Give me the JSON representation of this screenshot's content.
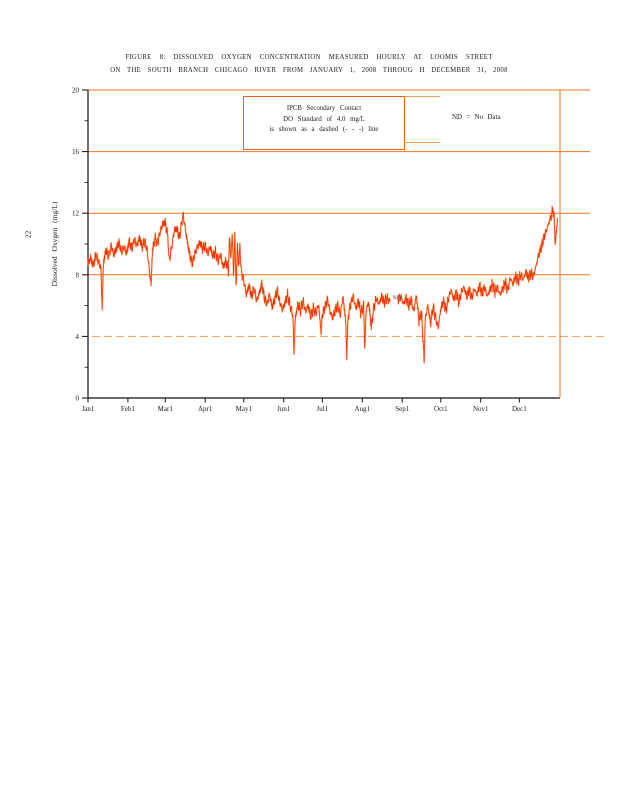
{
  "page": {
    "number": "22"
  },
  "figure_title": {
    "line1": "FIGURE 8: DISSOLVED OXYGEN CONCENTRATION MEASURED HOURLY AT LOOMIS STREET",
    "line2": "ON THE SOUTH BRANCH CHICAGO RIVER FROM JANUARY 1, 2008 THROUG H DECEMBER 31, 2008"
  },
  "legend": {
    "line1": "IPCB Secondary Contact",
    "line2": "DO Standard of 4.0 mg/L",
    "line3": "is shown as a dashed (- - -) line"
  },
  "nd_note": "ND = No Data",
  "colors": {
    "grid": "#ee7420",
    "dashed_standard": "#f8a55f",
    "data": "#f53000",
    "data_glow": "#ffab66",
    "axis": "#111111",
    "legend_border": "#e8601c",
    "nd_annotation": "#4a4a4a"
  },
  "chart_data": {
    "type": "line",
    "title": "FIGURE 8: Dissolved oxygen concentration measured hourly at Loomis Street on the South Branch Chicago River from January 1, 2008 through December 31, 2008",
    "xlabel": "",
    "ylabel": "Dissolved Oxygen (mg/L)",
    "ylim": [
      0,
      20
    ],
    "y_major_ticks": [
      0,
      4,
      8,
      12,
      16,
      20
    ],
    "y_minor_ticks": [
      2,
      6,
      10,
      14,
      18
    ],
    "x_tick_days": [
      1,
      32,
      61,
      92,
      122,
      153,
      183,
      214,
      245,
      275,
      306,
      336
    ],
    "x_tick_labels": [
      "Jan1",
      "Feb1",
      "Mar1",
      "Apr1",
      "May1",
      "Jun1",
      "Jul1",
      "Aug1",
      "Sep1",
      "Oct1",
      "Nov1",
      "Dec1"
    ],
    "x_range_days": [
      1,
      366
    ],
    "grid": "horizontal solid lines at 8, 12, 16, 20 mg/L",
    "legend_position": "top inside plot",
    "standard_line": {
      "value": 4.0,
      "style": "dashed",
      "meaning": "IPCB Secondary Contact DO Standard of 4.0 mg/L"
    },
    "no_data": {
      "label": "ND",
      "gap_days": [
        235.5,
        241.5
      ],
      "label_day": 237.5,
      "label_value": 6.4
    },
    "noise_amplitude": 0.42,
    "series": [
      {
        "name": "Hourly dissolved oxygen (mg/L)",
        "points": [
          [
            1,
            8.7
          ],
          [
            3,
            9.1
          ],
          [
            5,
            8.6
          ],
          [
            7,
            9.3
          ],
          [
            9,
            8.9
          ],
          [
            11,
            8.4
          ],
          [
            12,
            5.9
          ],
          [
            13,
            8.8
          ],
          [
            15,
            9.6
          ],
          [
            17,
            9.2
          ],
          [
            19,
            9.9
          ],
          [
            21,
            9.3
          ],
          [
            23,
            9.7
          ],
          [
            25,
            10.1
          ],
          [
            27,
            9.5
          ],
          [
            29,
            9.8
          ],
          [
            31,
            9.4
          ],
          [
            33,
            10.2
          ],
          [
            35,
            9.7
          ],
          [
            37,
            10.3
          ],
          [
            39,
            9.9
          ],
          [
            41,
            10.4
          ],
          [
            43,
            9.8
          ],
          [
            45,
            10.2
          ],
          [
            47,
            9.6
          ],
          [
            49,
            8.0
          ],
          [
            50,
            7.4
          ],
          [
            51,
            9.5
          ],
          [
            53,
            10.4
          ],
          [
            55,
            10.0
          ],
          [
            57,
            10.8
          ],
          [
            59,
            11.3
          ],
          [
            61,
            11.4
          ],
          [
            63,
            10.5
          ],
          [
            64,
            8.9
          ],
          [
            66,
            9.8
          ],
          [
            68,
            10.9
          ],
          [
            70,
            11.0
          ],
          [
            72,
            10.4
          ],
          [
            74,
            11.5
          ],
          [
            75,
            11.9
          ],
          [
            76,
            11.3
          ],
          [
            78,
            10.2
          ],
          [
            80,
            9.3
          ],
          [
            82,
            8.7
          ],
          [
            84,
            9.4
          ],
          [
            86,
            9.8
          ],
          [
            88,
            10.1
          ],
          [
            90,
            9.7
          ],
          [
            92,
            9.9
          ],
          [
            94,
            9.4
          ],
          [
            96,
            9.8
          ],
          [
            98,
            9.2
          ],
          [
            100,
            9.5
          ],
          [
            102,
            8.9
          ],
          [
            104,
            9.3
          ],
          [
            106,
            8.5
          ],
          [
            108,
            8.9
          ],
          [
            110,
            8.3
          ],
          [
            111,
            10.4
          ],
          [
            112,
            9.0
          ],
          [
            113,
            10.8
          ],
          [
            114,
            7.9
          ],
          [
            115,
            10.6
          ],
          [
            116,
            7.2
          ],
          [
            117,
            9.8
          ],
          [
            118,
            8.6
          ],
          [
            119,
            9.9
          ],
          [
            120,
            8.2
          ],
          [
            122,
            7.6
          ],
          [
            124,
            6.7
          ],
          [
            126,
            7.3
          ],
          [
            128,
            6.6
          ],
          [
            130,
            7.1
          ],
          [
            132,
            6.3
          ],
          [
            134,
            6.8
          ],
          [
            136,
            7.4
          ],
          [
            138,
            6.5
          ],
          [
            140,
            6.1
          ],
          [
            142,
            6.7
          ],
          [
            144,
            5.9
          ],
          [
            146,
            6.4
          ],
          [
            148,
            7.0
          ],
          [
            150,
            6.2
          ],
          [
            152,
            5.7
          ],
          [
            154,
            6.2
          ],
          [
            156,
            6.7
          ],
          [
            158,
            6.0
          ],
          [
            160,
            5.4
          ],
          [
            161,
            3.0
          ],
          [
            162,
            5.2
          ],
          [
            164,
            6.1
          ],
          [
            166,
            5.7
          ],
          [
            168,
            6.3
          ],
          [
            170,
            5.6
          ],
          [
            172,
            6.0
          ],
          [
            174,
            5.3
          ],
          [
            176,
            5.8
          ],
          [
            178,
            5.5
          ],
          [
            180,
            6.1
          ],
          [
            182,
            4.3
          ],
          [
            183,
            5.4
          ],
          [
            185,
            5.9
          ],
          [
            187,
            6.4
          ],
          [
            189,
            5.6
          ],
          [
            191,
            5.2
          ],
          [
            193,
            5.7
          ],
          [
            195,
            6.0
          ],
          [
            197,
            5.4
          ],
          [
            199,
            6.6
          ],
          [
            201,
            5.1
          ],
          [
            202,
            2.8
          ],
          [
            203,
            5.3
          ],
          [
            205,
            6.1
          ],
          [
            207,
            6.6
          ],
          [
            209,
            5.8
          ],
          [
            211,
            6.3
          ],
          [
            213,
            5.5
          ],
          [
            215,
            6.0
          ],
          [
            216,
            3.2
          ],
          [
            217,
            5.7
          ],
          [
            219,
            6.2
          ],
          [
            221,
            4.6
          ],
          [
            223,
            5.9
          ],
          [
            225,
            6.5
          ],
          [
            227,
            6.1
          ],
          [
            229,
            6.6
          ],
          [
            231,
            6.2
          ],
          [
            233,
            6.5
          ],
          [
            235,
            6.3
          ],
          [
            242,
            6.4
          ],
          [
            244,
            6.6
          ],
          [
            246,
            6.1
          ],
          [
            248,
            6.5
          ],
          [
            250,
            6.0
          ],
          [
            252,
            6.4
          ],
          [
            254,
            5.6
          ],
          [
            256,
            6.7
          ],
          [
            258,
            5.0
          ],
          [
            260,
            5.6
          ],
          [
            262,
            2.4
          ],
          [
            263,
            5.2
          ],
          [
            265,
            6.0
          ],
          [
            267,
            4.8
          ],
          [
            269,
            5.9
          ],
          [
            271,
            5.2
          ],
          [
            273,
            4.6
          ],
          [
            275,
            5.8
          ],
          [
            277,
            6.3
          ],
          [
            279,
            5.7
          ],
          [
            281,
            6.5
          ],
          [
            283,
            7.0
          ],
          [
            285,
            6.4
          ],
          [
            287,
            6.8
          ],
          [
            289,
            6.2
          ],
          [
            291,
            6.9
          ],
          [
            293,
            7.2
          ],
          [
            295,
            6.6
          ],
          [
            297,
            7.0
          ],
          [
            299,
            6.5
          ],
          [
            301,
            7.1
          ],
          [
            303,
            6.7
          ],
          [
            305,
            7.3
          ],
          [
            307,
            6.8
          ],
          [
            309,
            7.2
          ],
          [
            311,
            6.6
          ],
          [
            313,
            7.0
          ],
          [
            315,
            7.4
          ],
          [
            317,
            6.9
          ],
          [
            319,
            7.2
          ],
          [
            321,
            6.7
          ],
          [
            323,
            7.1
          ],
          [
            325,
            7.5
          ],
          [
            327,
            7.0
          ],
          [
            329,
            7.8
          ],
          [
            331,
            7.4
          ],
          [
            333,
            7.9
          ],
          [
            335,
            7.6
          ],
          [
            337,
            8.0
          ],
          [
            339,
            7.7
          ],
          [
            341,
            8.2
          ],
          [
            343,
            7.8
          ],
          [
            345,
            8.1
          ],
          [
            347,
            7.9
          ],
          [
            349,
            8.6
          ],
          [
            351,
            9.3
          ],
          [
            353,
            9.8
          ],
          [
            355,
            10.4
          ],
          [
            357,
            10.9
          ],
          [
            359,
            11.4
          ],
          [
            361,
            11.9
          ],
          [
            362,
            12.3
          ],
          [
            363,
            11.6
          ],
          [
            364,
            9.9
          ],
          [
            365,
            11.2
          ],
          [
            366,
            11.7
          ]
        ]
      }
    ]
  }
}
